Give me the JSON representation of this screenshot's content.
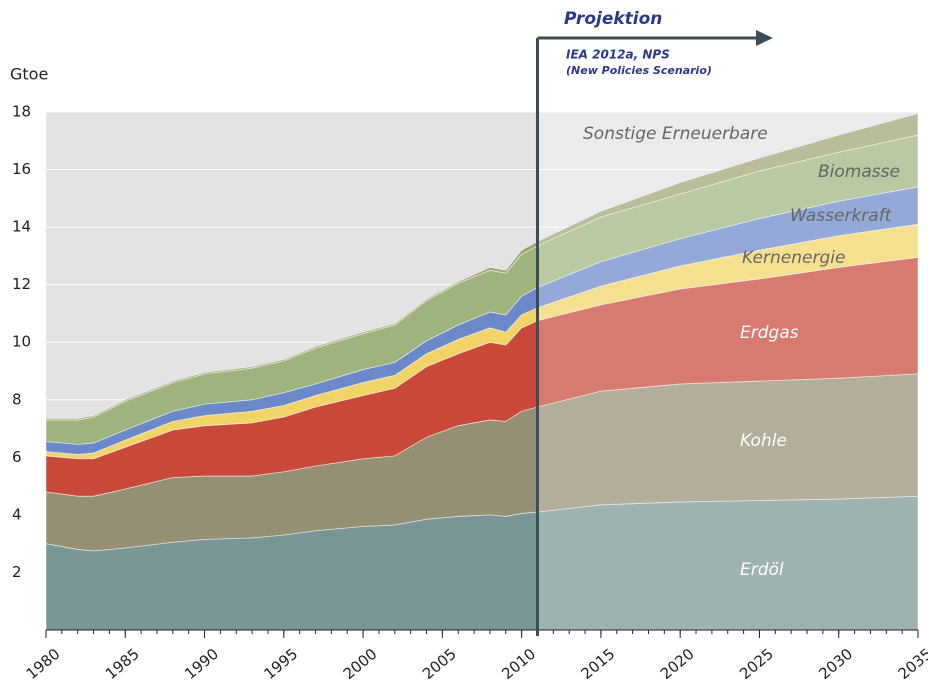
{
  "chart_data": {
    "type": "stacked_area",
    "y_axis_label": "Gtoe",
    "annotation_title": "Projektion",
    "annotation_source": "IEA 2012a, NPS",
    "annotation_scenario": "(New Policies Scenario)",
    "projection_start": 2011,
    "x": [
      1980,
      1982,
      1983,
      1985,
      1988,
      1990,
      1993,
      1995,
      1997,
      2000,
      2002,
      2004,
      2006,
      2008,
      2009,
      2010,
      2011,
      2015,
      2020,
      2025,
      2030,
      2035
    ],
    "xlim": [
      1980,
      2035
    ],
    "xticks": [
      1980,
      1985,
      1990,
      1995,
      2000,
      2005,
      2010,
      2015,
      2020,
      2025,
      2030,
      2035
    ],
    "ylim": [
      0,
      18
    ],
    "yticks": [
      2,
      4,
      6,
      8,
      10,
      12,
      14,
      16,
      18
    ],
    "grid": true,
    "series": [
      {
        "name": "Erdöl",
        "color": "#7a9595",
        "values": [
          3.0,
          2.8,
          2.75,
          2.85,
          3.05,
          3.15,
          3.2,
          3.3,
          3.45,
          3.6,
          3.65,
          3.85,
          3.95,
          4.0,
          3.95,
          4.05,
          4.1,
          4.35,
          4.45,
          4.5,
          4.55,
          4.65
        ]
      },
      {
        "name": "Kohle",
        "color": "#958f73",
        "values": [
          1.8,
          1.85,
          1.9,
          2.05,
          2.25,
          2.2,
          2.15,
          2.2,
          2.25,
          2.35,
          2.4,
          2.85,
          3.15,
          3.3,
          3.3,
          3.55,
          3.65,
          3.95,
          4.1,
          4.15,
          4.2,
          4.25
        ]
      },
      {
        "name": "Erdgas",
        "color": "#c8483a",
        "values": [
          1.25,
          1.3,
          1.3,
          1.45,
          1.65,
          1.75,
          1.85,
          1.9,
          2.05,
          2.2,
          2.35,
          2.45,
          2.5,
          2.7,
          2.65,
          2.9,
          3.0,
          3.0,
          3.3,
          3.55,
          3.85,
          4.05
        ]
      },
      {
        "name": "Kernenergie",
        "color": "#f2d466",
        "values": [
          0.15,
          0.15,
          0.2,
          0.25,
          0.3,
          0.35,
          0.4,
          0.4,
          0.4,
          0.45,
          0.45,
          0.45,
          0.5,
          0.5,
          0.45,
          0.45,
          0.45,
          0.65,
          0.8,
          1.0,
          1.1,
          1.15
        ]
      },
      {
        "name": "Wasserkraft",
        "color": "#6b88c9",
        "values": [
          0.35,
          0.35,
          0.35,
          0.35,
          0.35,
          0.4,
          0.4,
          0.45,
          0.4,
          0.45,
          0.45,
          0.45,
          0.5,
          0.55,
          0.6,
          0.65,
          0.7,
          0.85,
          0.95,
          1.1,
          1.2,
          1.3
        ]
      },
      {
        "name": "Biomasse",
        "color": "#9fb47d",
        "values": [
          0.75,
          0.85,
          0.9,
          1.0,
          1.0,
          1.05,
          1.1,
          1.1,
          1.25,
          1.25,
          1.3,
          1.4,
          1.45,
          1.45,
          1.45,
          1.45,
          1.45,
          1.55,
          1.55,
          1.65,
          1.7,
          1.8
        ]
      },
      {
        "name": "Sonstige Erneuerbare",
        "color": "#9fa473",
        "values": [
          0.05,
          0.05,
          0.05,
          0.05,
          0.05,
          0.05,
          0.05,
          0.05,
          0.05,
          0.05,
          0.05,
          0.05,
          0.05,
          0.1,
          0.1,
          0.15,
          0.15,
          0.2,
          0.4,
          0.45,
          0.6,
          0.75
        ]
      }
    ]
  }
}
